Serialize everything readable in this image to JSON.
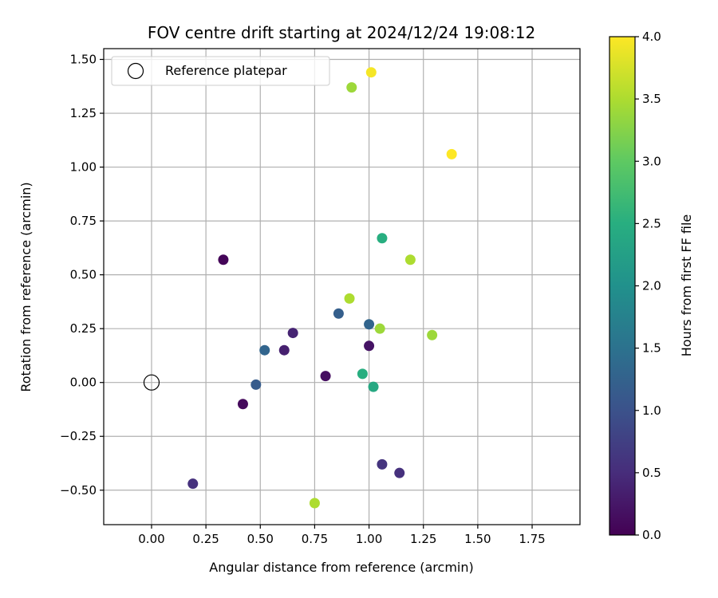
{
  "chart_data": {
    "type": "scatter",
    "title": "FOV centre drift starting at 2024/12/24 19:08:12",
    "xlabel": "Angular distance from reference (arcmin)",
    "ylabel": "Rotation from reference (arcmin)",
    "xlim": [
      -0.22,
      1.97
    ],
    "ylim": [
      -0.66,
      1.55
    ],
    "xticks": [
      0.0,
      0.25,
      0.5,
      0.75,
      1.0,
      1.25,
      1.5,
      1.75
    ],
    "xtick_labels": [
      "0.00",
      "0.25",
      "0.50",
      "0.75",
      "1.00",
      "1.25",
      "1.50",
      "1.75"
    ],
    "yticks": [
      -0.5,
      -0.25,
      0.0,
      0.25,
      0.5,
      0.75,
      1.0,
      1.25,
      1.5
    ],
    "ytick_labels": [
      "−0.50",
      "−0.25",
      "0.00",
      "0.25",
      "0.50",
      "0.75",
      "1.00",
      "1.25",
      "1.50"
    ],
    "grid": true,
    "legend": {
      "position": "top-left",
      "entries": [
        "Reference platepar"
      ]
    },
    "reference_point": {
      "x": 0.0,
      "y": 0.0
    },
    "colorbar": {
      "label": "Hours from first FF file",
      "range": [
        0.0,
        4.0
      ],
      "ticks": [
        0.0,
        0.5,
        1.0,
        1.5,
        2.0,
        2.5,
        3.0,
        3.5,
        4.0
      ],
      "tick_labels": [
        "0.0",
        "0.5",
        "1.0",
        "1.5",
        "2.0",
        "2.5",
        "3.0",
        "3.5",
        "4.0"
      ],
      "colormap": "viridis"
    },
    "points": [
      {
        "x": 0.33,
        "y": 0.57,
        "hours": 0.05
      },
      {
        "x": 0.42,
        "y": -0.1,
        "hours": 0.1
      },
      {
        "x": 0.8,
        "y": 0.03,
        "hours": 0.15
      },
      {
        "x": 1.0,
        "y": 0.17,
        "hours": 0.2
      },
      {
        "x": 0.61,
        "y": 0.15,
        "hours": 0.35
      },
      {
        "x": 0.65,
        "y": 0.23,
        "hours": 0.4
      },
      {
        "x": 1.14,
        "y": -0.42,
        "hours": 0.55
      },
      {
        "x": 0.19,
        "y": -0.47,
        "hours": 0.55
      },
      {
        "x": 1.06,
        "y": -0.38,
        "hours": 0.6
      },
      {
        "x": 0.48,
        "y": -0.01,
        "hours": 1.15
      },
      {
        "x": 0.86,
        "y": 0.32,
        "hours": 1.2
      },
      {
        "x": 0.52,
        "y": 0.15,
        "hours": 1.3
      },
      {
        "x": 1.0,
        "y": 0.27,
        "hours": 1.3
      },
      {
        "x": 1.02,
        "y": -0.02,
        "hours": 2.4
      },
      {
        "x": 0.97,
        "y": 0.04,
        "hours": 2.5
      },
      {
        "x": 1.06,
        "y": 0.67,
        "hours": 2.5
      },
      {
        "x": 0.92,
        "y": 1.37,
        "hours": 3.4
      },
      {
        "x": 1.05,
        "y": 0.25,
        "hours": 3.4
      },
      {
        "x": 1.29,
        "y": 0.22,
        "hours": 3.4
      },
      {
        "x": 0.91,
        "y": 0.39,
        "hours": 3.5
      },
      {
        "x": 1.19,
        "y": 0.57,
        "hours": 3.5
      },
      {
        "x": 0.75,
        "y": -0.56,
        "hours": 3.5
      },
      {
        "x": 1.01,
        "y": 1.44,
        "hours": 3.95
      },
      {
        "x": 1.38,
        "y": 1.06,
        "hours": 4.0
      }
    ]
  }
}
